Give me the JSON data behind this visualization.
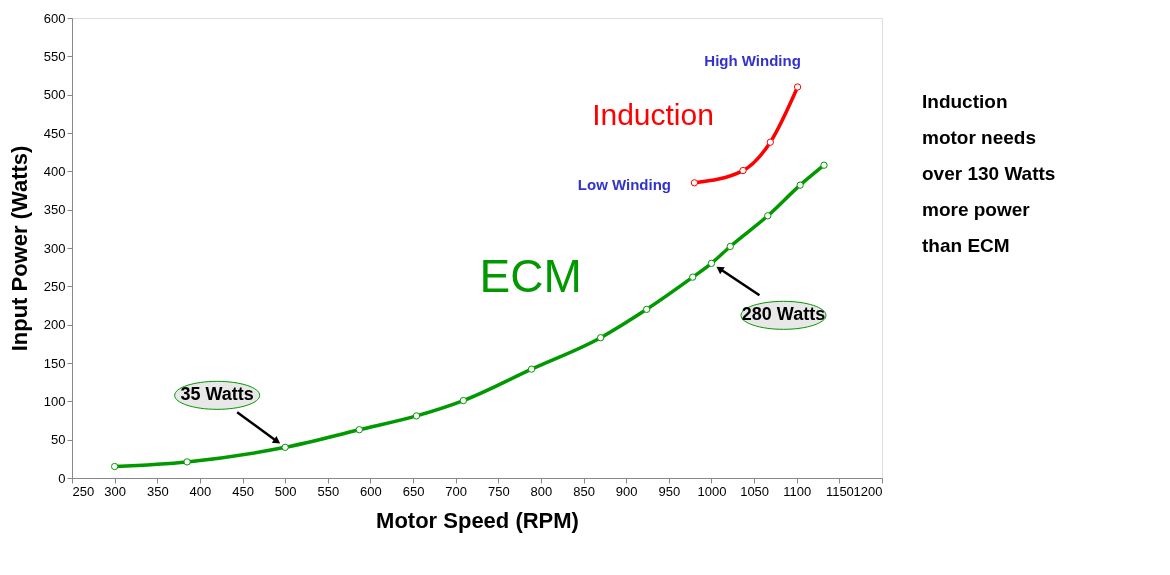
{
  "chart_data": {
    "type": "line",
    "xlabel": "Motor Speed (RPM)",
    "ylabel": "Input Power (Watts)",
    "series": [
      {
        "name": "ECM",
        "color": "#009900",
        "x": [
          300,
          385,
          500,
          587,
          654,
          709,
          789,
          870,
          924,
          978,
          1000,
          1022,
          1066,
          1104,
          1132
        ],
        "values": [
          15,
          21,
          40,
          63,
          81,
          101,
          142,
          183,
          220,
          262,
          280,
          302,
          342,
          382,
          408
        ]
      },
      {
        "name": "Induction",
        "color": "#ff0000",
        "x": [
          980,
          1037,
          1069,
          1101
        ],
        "values": [
          385,
          401,
          438,
          510
        ]
      }
    ],
    "xlim": [
      250,
      1200
    ],
    "xticks": [
      250,
      300,
      350,
      400,
      450,
      500,
      550,
      600,
      650,
      700,
      750,
      800,
      850,
      900,
      950,
      1000,
      1050,
      1100,
      1150,
      1200
    ],
    "ylim": [
      0,
      600
    ],
    "yticks": [
      0,
      50,
      100,
      150,
      200,
      250,
      300,
      350,
      400,
      450,
      500,
      550,
      600
    ],
    "grid": false,
    "legend": false,
    "marker": "circle",
    "line_style": "solid",
    "annotations": [
      {
        "text": "35 Watts",
        "x": 500,
        "y": 40
      },
      {
        "text": "280 Watts",
        "x": 1000,
        "y": 280
      },
      {
        "text": "High Winding",
        "x": 1101,
        "y": 510
      },
      {
        "text": "Low Winding",
        "x": 980,
        "y": 385
      },
      "Induction motor needs over 130 Watts more power than ECM"
    ]
  }
}
